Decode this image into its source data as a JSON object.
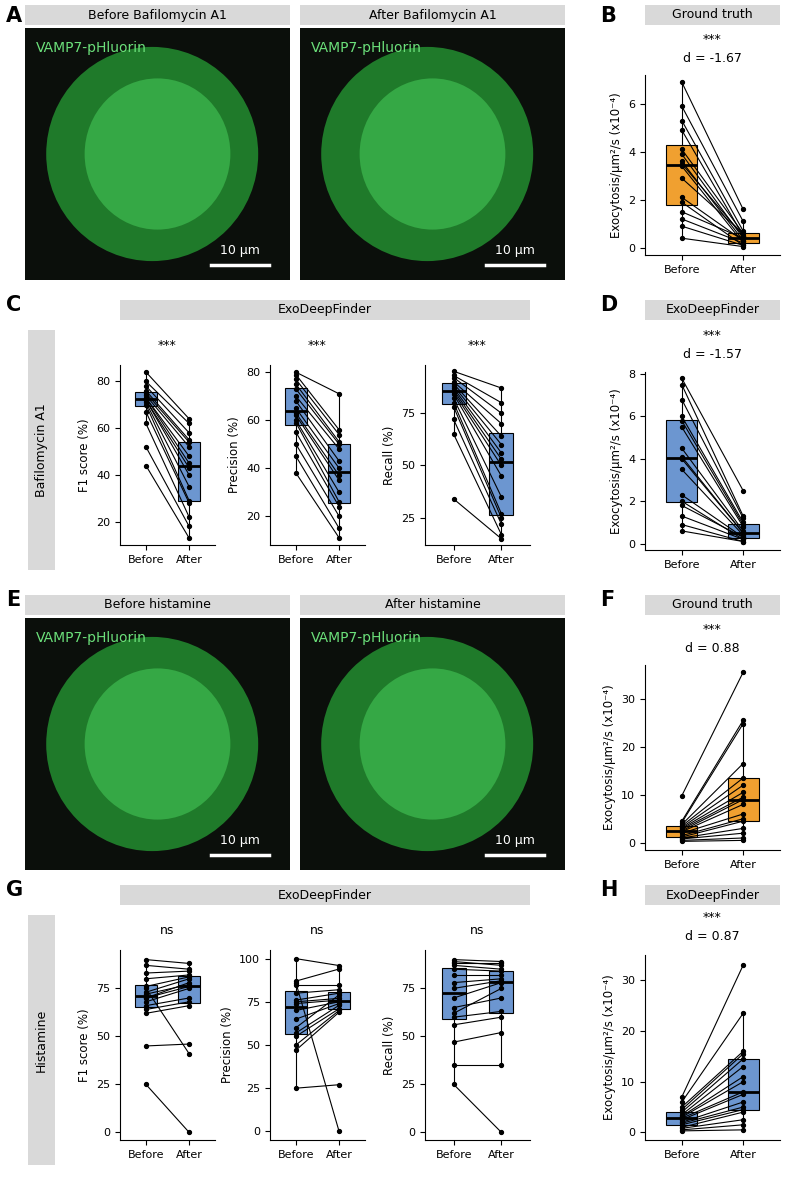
{
  "chart_data": [
    {
      "panel": "A",
      "type": "images",
      "images": [
        {
          "header": "Before Bafilomycin A1",
          "label": "VAMP7-pHluorin",
          "scale_bar": "10 µm"
        },
        {
          "header": "After Bafilomycin A1",
          "label": "VAMP7-pHluorin",
          "scale_bar": "10 µm"
        }
      ]
    },
    {
      "panel": "B",
      "type": "box",
      "title": "Ground truth",
      "categories": [
        "Before",
        "After"
      ],
      "y_label": "Exocytosis/µm²/s (x10⁻⁴)",
      "color": "#F0A030",
      "annotations": [
        "***",
        "d = -1.67"
      ],
      "ylim": [
        -0.3,
        7.2
      ],
      "yticks": [
        0,
        2,
        4,
        6
      ],
      "values": [
        [
          6.9,
          5.9,
          5.3,
          4.9,
          4.1,
          3.9,
          3.6,
          3.5,
          3.4,
          2.9,
          2.1,
          1.9,
          1.5,
          1.2,
          0.9,
          0.4
        ],
        [
          1.6,
          1.1,
          0.7,
          0.5,
          0.6,
          0.4,
          0.3,
          0.5,
          0.2,
          0.6,
          0.3,
          0.1,
          0.4,
          0.2,
          0.1,
          0.05
        ]
      ]
    },
    {
      "panel": "C",
      "type": "box_group",
      "title": "ExoDeepFinder",
      "group_label": "Bafilomycin A1",
      "color": "#6C96D0",
      "categories": [
        "Before",
        "After"
      ],
      "charts": [
        {
          "y_label": "F1 score (%)",
          "annotation": "***",
          "ylim": [
            10,
            87
          ],
          "yticks": [
            20,
            40,
            60,
            80
          ],
          "values": [
            [
              84,
              80,
              78,
              76,
              75,
              74,
              73,
              73,
              72,
              72,
              71,
              70,
              67,
              62,
              52,
              44
            ],
            [
              64,
              62,
              58,
              55,
              54,
              52,
              48,
              45,
              43,
              40,
              35,
              29,
              28,
              22,
              18,
              13
            ]
          ]
        },
        {
          "y_label": "Precision (%)",
          "annotation": "***",
          "ylim": [
            8,
            83
          ],
          "yticks": [
            20,
            40,
            60,
            80
          ],
          "values": [
            [
              80,
              79,
              77,
              75,
              73,
              70,
              68,
              65,
              63,
              62,
              60,
              59,
              55,
              50,
              45,
              38
            ],
            [
              71,
              56,
              54,
              51,
              50,
              48,
              43,
              40,
              37,
              35,
              30,
              26,
              24,
              20,
              15,
              11
            ]
          ]
        },
        {
          "y_label": "Recall (%)",
          "annotation": "***",
          "ylim": [
            12,
            98
          ],
          "yticks": [
            25,
            50,
            75
          ],
          "values": [
            [
              95,
              93,
              92,
              90,
              89,
              88,
              87,
              86,
              85,
              84,
              82,
              80,
              78,
              72,
              65,
              34
            ],
            [
              87,
              80,
              75,
              70,
              64,
              60,
              56,
              53,
              50,
              45,
              35,
              27,
              25,
              22,
              17,
              15
            ]
          ]
        }
      ]
    },
    {
      "panel": "D",
      "type": "box",
      "title": "ExoDeepFinder",
      "categories": [
        "Before",
        "After"
      ],
      "y_label": "Exocytosis/µm²/s (x10⁻⁴)",
      "color": "#6C96D0",
      "annotations": [
        "***",
        "d = -1.57"
      ],
      "ylim": [
        -0.3,
        8.1
      ],
      "yticks": [
        0,
        2,
        4,
        6,
        8
      ],
      "values": [
        [
          7.8,
          7.5,
          6.8,
          6.0,
          5.8,
          5.5,
          4.5,
          4.1,
          4.0,
          3.5,
          2.3,
          2.0,
          1.8,
          1.3,
          0.9,
          0.6
        ],
        [
          2.5,
          1.3,
          1.2,
          1.0,
          0.9,
          0.8,
          0.6,
          0.5,
          0.5,
          0.4,
          0.3,
          0.2,
          0.3,
          0.2,
          0.1,
          0.1
        ]
      ]
    },
    {
      "panel": "E",
      "type": "images",
      "images": [
        {
          "header": "Before histamine",
          "label": "VAMP7-pHluorin",
          "scale_bar": "10 µm"
        },
        {
          "header": "After histamine",
          "label": "VAMP7-pHluorin",
          "scale_bar": "10 µm"
        }
      ]
    },
    {
      "panel": "F",
      "type": "box",
      "title": "Ground truth",
      "categories": [
        "Before",
        "After"
      ],
      "y_label": "Exocytosis/µm²/s (x10⁻⁴)",
      "color": "#F0A030",
      "annotations": [
        "***",
        "d = 0.88"
      ],
      "ylim": [
        -1.5,
        37
      ],
      "yticks": [
        0,
        10,
        20,
        30
      ],
      "values": [
        [
          9.8,
          4.5,
          4.2,
          3.8,
          3.5,
          3.2,
          3.0,
          2.8,
          2.5,
          2.3,
          2.0,
          1.5,
          1.2,
          1.0,
          0.8,
          0.5,
          0.3
        ],
        [
          35.5,
          25.5,
          24.8,
          16.5,
          13.5,
          12.0,
          10.5,
          9.5,
          9.0,
          8.0,
          6.0,
          5.0,
          4.5,
          3.0,
          2.0,
          1.0,
          0.5
        ]
      ]
    },
    {
      "panel": "G",
      "type": "box_group",
      "title": "ExoDeepFinder",
      "group_label": "Histamine",
      "color": "#6C96D0",
      "categories": [
        "Before",
        "After"
      ],
      "charts": [
        {
          "y_label": "F1 score (%)",
          "annotation": "ns",
          "ylim": [
            -4,
            95
          ],
          "yticks": [
            0,
            25,
            50,
            75
          ],
          "values": [
            [
              90,
              87,
              83,
              80,
              76,
              73,
              72,
              70,
              68,
              66,
              64,
              45,
              25,
              70,
              75,
              62
            ],
            [
              88,
              85,
              84,
              82,
              81,
              80,
              77,
              76,
              75,
              70,
              68,
              46,
              0,
              78,
              41,
              66
            ]
          ]
        },
        {
          "y_label": "Precision (%)",
          "annotation": "ns",
          "ylim": [
            -5,
            105
          ],
          "yticks": [
            0,
            25,
            50,
            75,
            100
          ],
          "values": [
            [
              100,
              87,
              85,
              80,
              76,
              75,
              74,
              70,
              65,
              57,
              55,
              50,
              47,
              25,
              86,
              60
            ],
            [
              96,
              94,
              85,
              82,
              80,
              77,
              76,
              75,
              74,
              73,
              71,
              70,
              69,
              27,
              0,
              79
            ]
          ]
        },
        {
          "y_label": "Recall (%)",
          "annotation": "ns",
          "ylim": [
            -4,
            95
          ],
          "yticks": [
            0,
            25,
            50,
            75
          ],
          "values": [
            [
              90,
              89,
              87,
              85,
              82,
              78,
              75,
              70,
              65,
              60,
              56,
              47,
              35,
              25,
              88,
              62
            ],
            [
              89,
              87,
              85,
              84,
              82,
              80,
              79,
              78,
              70,
              63,
              60,
              52,
              35,
              0,
              88,
              75
            ]
          ]
        }
      ]
    },
    {
      "panel": "H",
      "type": "box",
      "title": "ExoDeepFinder",
      "categories": [
        "Before",
        "After"
      ],
      "y_label": "Exocytosis/µm²/s (x10⁻⁴)",
      "color": "#6C96D0",
      "annotations": [
        "***",
        "d = 0.87"
      ],
      "ylim": [
        -1.5,
        35
      ],
      "yticks": [
        0,
        10,
        20,
        30
      ],
      "values": [
        [
          7.0,
          6.0,
          5.0,
          4.5,
          4.0,
          3.5,
          3.2,
          3.0,
          2.8,
          2.5,
          2.0,
          1.8,
          1.5,
          1.0,
          0.8,
          0.5,
          0.3
        ],
        [
          33.0,
          23.5,
          16.0,
          15.5,
          14.5,
          13.0,
          11.0,
          10.0,
          8.0,
          7.5,
          6.0,
          5.0,
          4.5,
          4.0,
          2.5,
          1.5,
          0.5
        ]
      ]
    }
  ]
}
